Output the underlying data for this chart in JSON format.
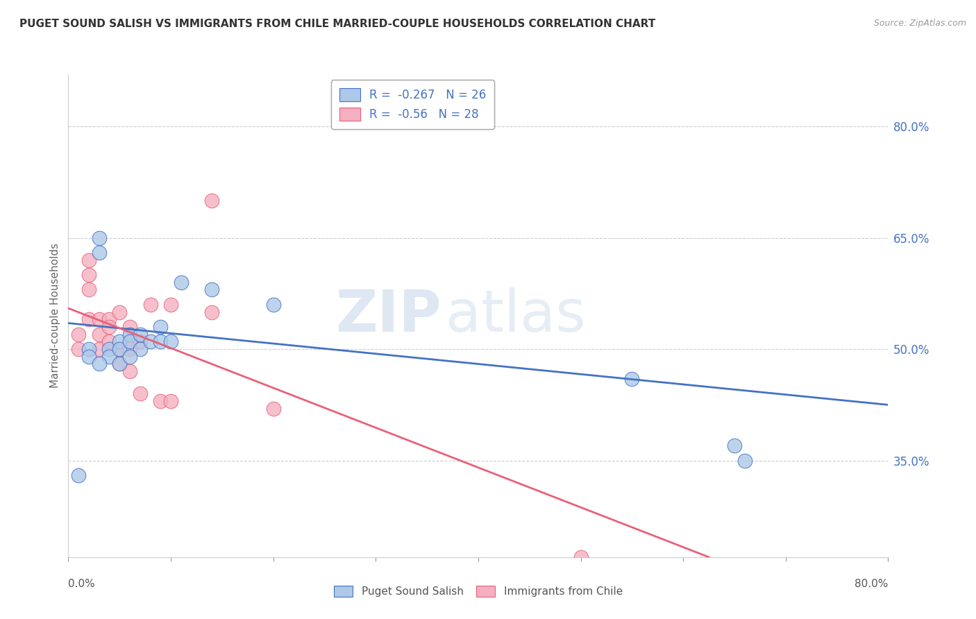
{
  "title": "PUGET SOUND SALISH VS IMMIGRANTS FROM CHILE MARRIED-COUPLE HOUSEHOLDS CORRELATION CHART",
  "source": "Source: ZipAtlas.com",
  "ylabel": "Married-couple Households",
  "x_min": 0.0,
  "x_max": 0.8,
  "y_min": 0.22,
  "y_max": 0.87,
  "y_ticks": [
    0.35,
    0.5,
    0.65,
    0.8
  ],
  "y_tick_labels": [
    "35.0%",
    "50.0%",
    "65.0%",
    "80.0%"
  ],
  "x_ticks": [
    0.0,
    0.1,
    0.2,
    0.3,
    0.4,
    0.5,
    0.6,
    0.7,
    0.8
  ],
  "blue_R": -0.267,
  "blue_N": 26,
  "pink_R": -0.56,
  "pink_N": 28,
  "blue_label": "Puget Sound Salish",
  "pink_label": "Immigrants from Chile",
  "blue_color": "#adc8e8",
  "pink_color": "#f5afc0",
  "blue_line_color": "#4472c4",
  "pink_line_color": "#e8607a",
  "watermark_zip": "ZIP",
  "watermark_atlas": "atlas",
  "blue_x": [
    0.01,
    0.02,
    0.02,
    0.03,
    0.03,
    0.04,
    0.04,
    0.05,
    0.05,
    0.05,
    0.06,
    0.06,
    0.07,
    0.07,
    0.08,
    0.09,
    0.09,
    0.1,
    0.11,
    0.14,
    0.2,
    0.55,
    0.65,
    0.66,
    0.03,
    0.06
  ],
  "blue_y": [
    0.33,
    0.5,
    0.49,
    0.63,
    0.65,
    0.5,
    0.49,
    0.51,
    0.5,
    0.48,
    0.52,
    0.51,
    0.52,
    0.5,
    0.51,
    0.53,
    0.51,
    0.51,
    0.59,
    0.58,
    0.56,
    0.46,
    0.37,
    0.35,
    0.48,
    0.49
  ],
  "pink_x": [
    0.01,
    0.01,
    0.02,
    0.02,
    0.02,
    0.03,
    0.03,
    0.03,
    0.04,
    0.04,
    0.04,
    0.05,
    0.05,
    0.05,
    0.06,
    0.06,
    0.06,
    0.07,
    0.07,
    0.08,
    0.09,
    0.1,
    0.1,
    0.14,
    0.14,
    0.2,
    0.5,
    0.02
  ],
  "pink_y": [
    0.5,
    0.52,
    0.54,
    0.58,
    0.6,
    0.52,
    0.54,
    0.5,
    0.54,
    0.53,
    0.51,
    0.55,
    0.5,
    0.48,
    0.53,
    0.5,
    0.47,
    0.51,
    0.44,
    0.56,
    0.43,
    0.56,
    0.43,
    0.7,
    0.55,
    0.42,
    0.22,
    0.62
  ],
  "blue_trend_x0": 0.0,
  "blue_trend_x1": 0.8,
  "blue_trend_y0": 0.535,
  "blue_trend_y1": 0.425,
  "pink_trend_x0": 0.0,
  "pink_trend_x1": 0.625,
  "pink_trend_y0": 0.555,
  "pink_trend_y1": 0.22
}
